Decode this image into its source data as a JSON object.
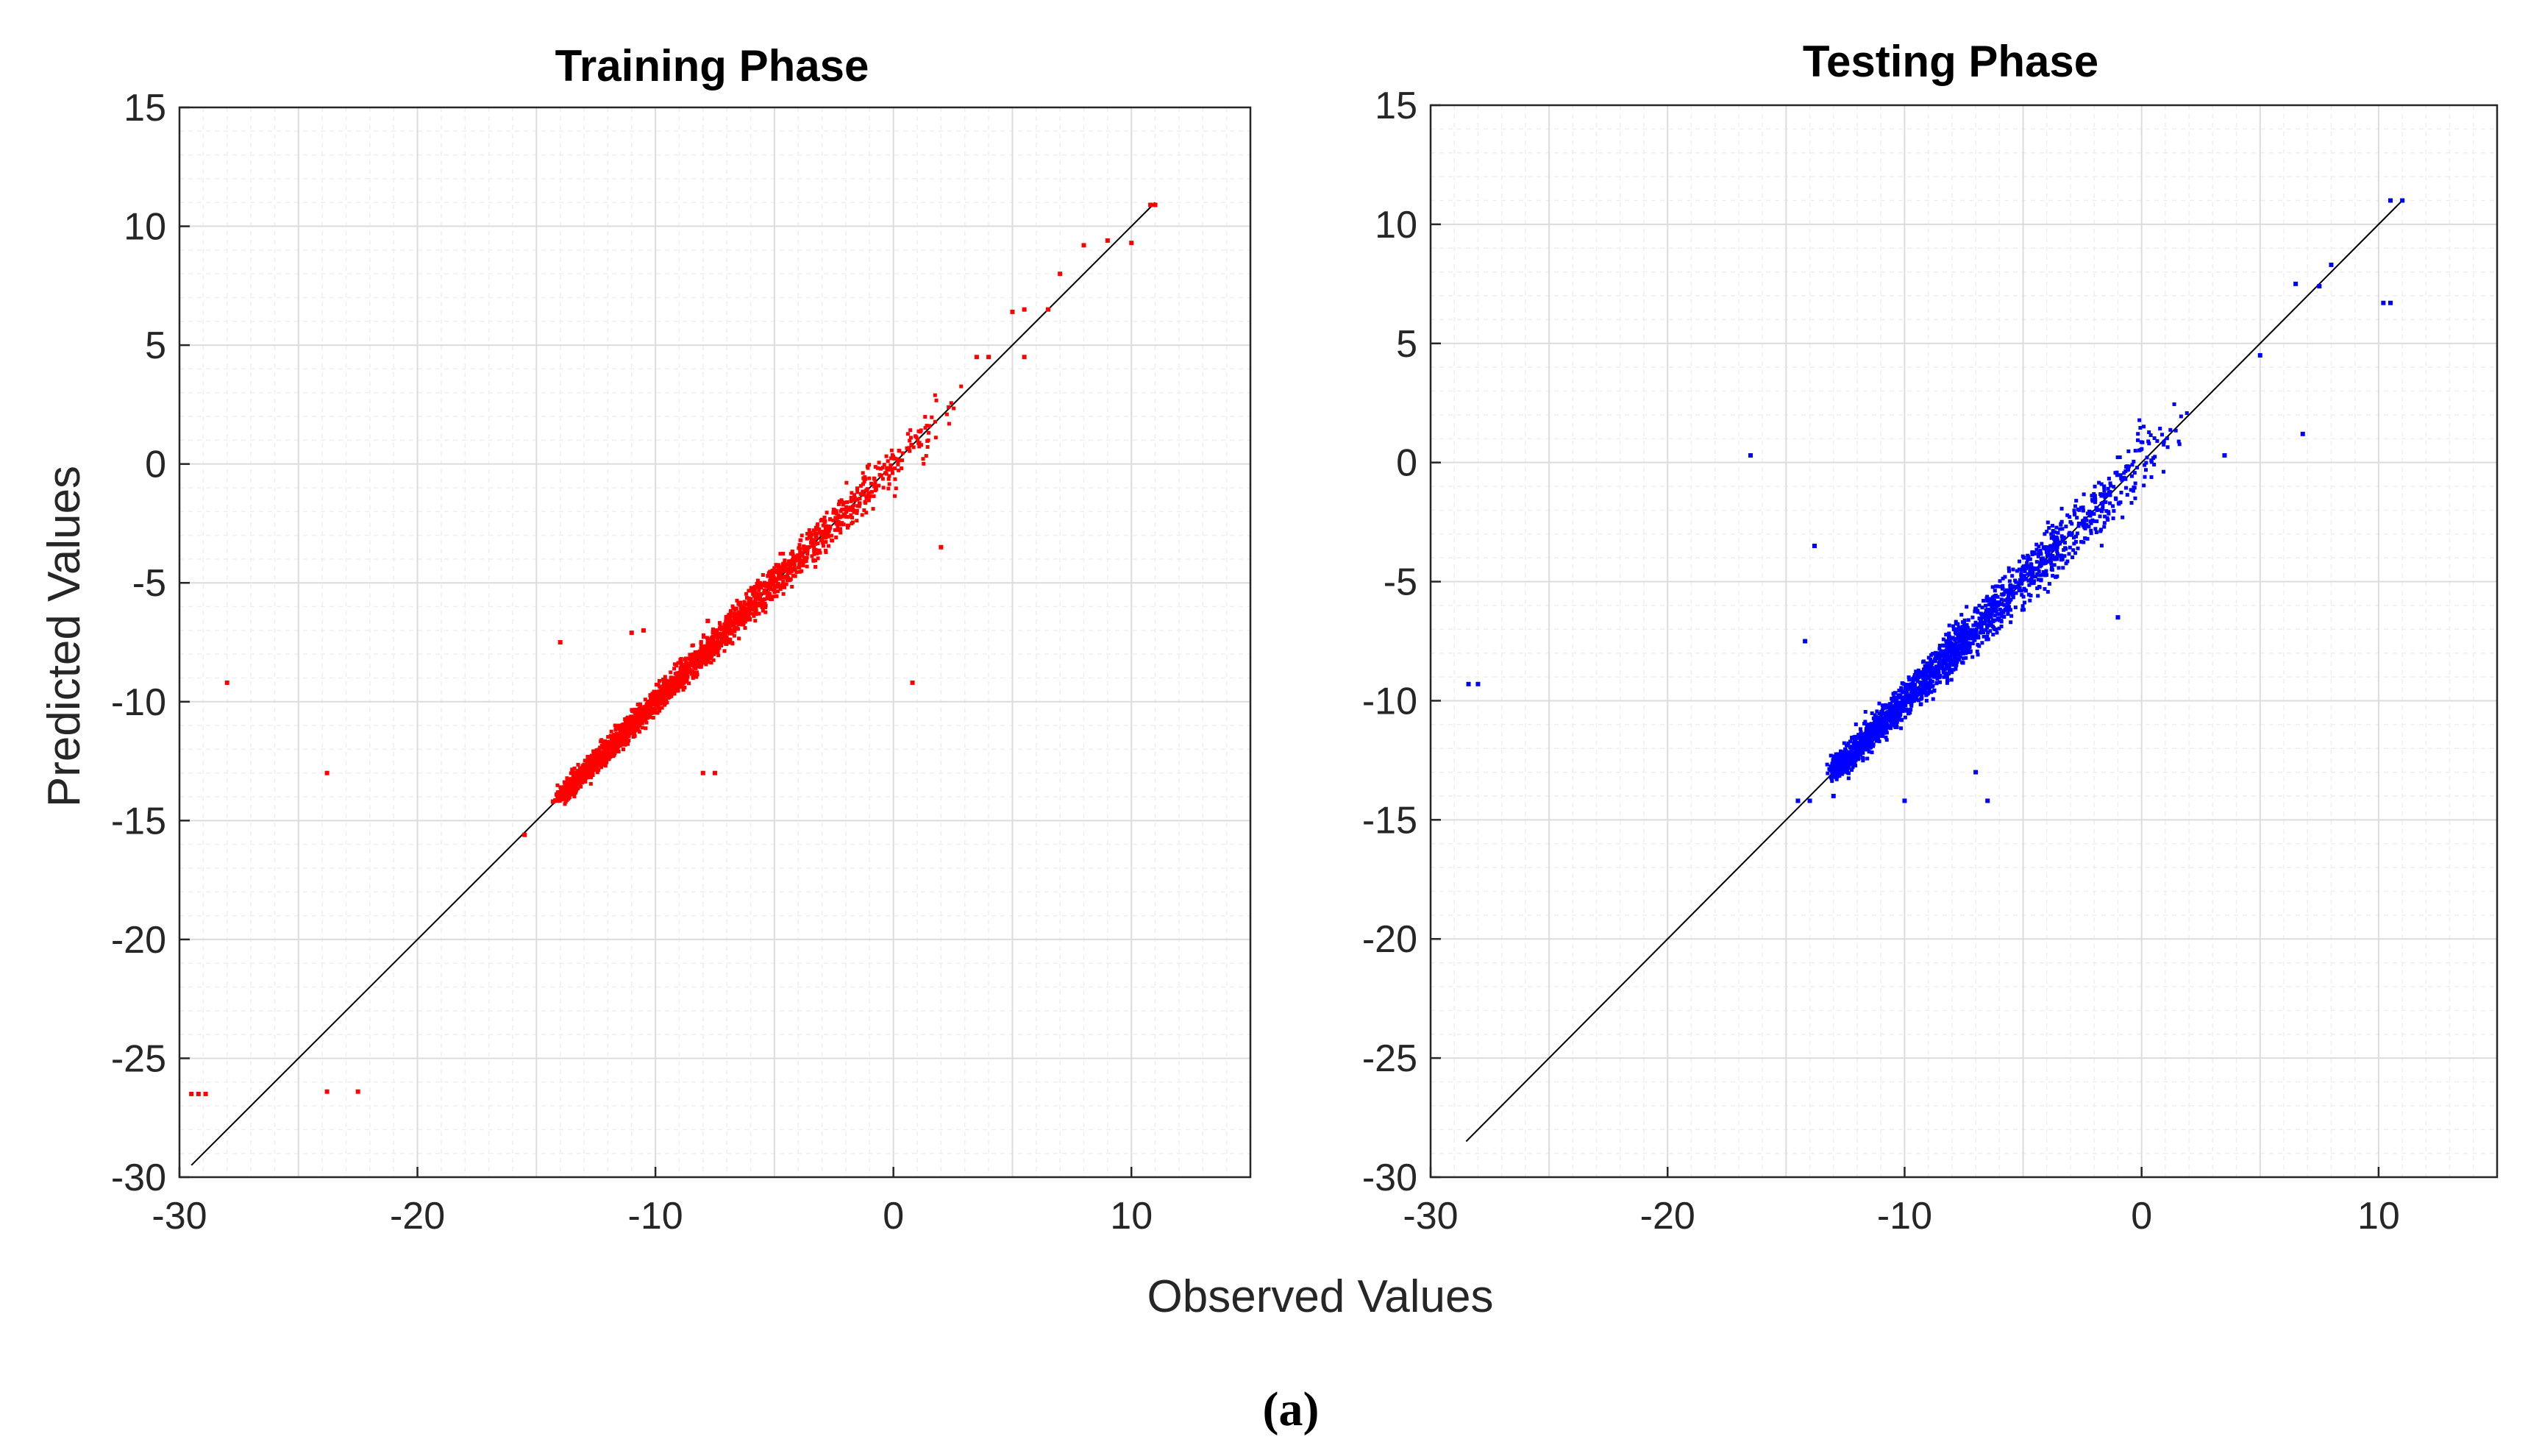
{
  "figure": {
    "caption": "(a)",
    "xlabel": "Observed Values",
    "ylabel": "Predicted Values"
  },
  "chart_data": [
    {
      "type": "scatter",
      "title": "Training Phase",
      "xlabel": "Observed Values",
      "ylabel": "Predicted Values",
      "xlim": [
        -30,
        15
      ],
      "ylim": [
        -30,
        15
      ],
      "xticks": [
        -30,
        -20,
        -10,
        0,
        10
      ],
      "yticks": [
        15,
        10,
        5,
        0,
        -5,
        -10,
        -15,
        -20,
        -25,
        -30
      ],
      "grid": true,
      "marker_color": "#ff0000",
      "reference_line": {
        "from": [
          -29.5,
          -29.5
        ],
        "to": [
          11,
          11
        ],
        "color": "#000000"
      },
      "cluster": {
        "x_range": [
          -14,
          3
        ],
        "slope": 1.0,
        "spread": 0.6,
        "count": 2400
      },
      "outliers": [
        {
          "x": -29.5,
          "y": -26.5
        },
        {
          "x": -29.2,
          "y": -26.5
        },
        {
          "x": -28.9,
          "y": -26.5
        },
        {
          "x": -28,
          "y": -9.2
        },
        {
          "x": -23.8,
          "y": -13
        },
        {
          "x": -23.8,
          "y": -26.4
        },
        {
          "x": -22.5,
          "y": -26.4
        },
        {
          "x": -15.5,
          "y": -15.6
        },
        {
          "x": -14.3,
          "y": -14.2
        },
        {
          "x": -14,
          "y": -14.1
        },
        {
          "x": -14,
          "y": -7.5
        },
        {
          "x": -11,
          "y": -7.1
        },
        {
          "x": -10.5,
          "y": -7
        },
        {
          "x": -8,
          "y": -13
        },
        {
          "x": -7.5,
          "y": -13
        },
        {
          "x": -7.8,
          "y": -6.6
        },
        {
          "x": 0.8,
          "y": -9.2
        },
        {
          "x": 2,
          "y": -3.5
        },
        {
          "x": 3.5,
          "y": 4.5
        },
        {
          "x": 4,
          "y": 4.5
        },
        {
          "x": 5.5,
          "y": 4.5
        },
        {
          "x": 5,
          "y": 6.4
        },
        {
          "x": 5.5,
          "y": 6.5
        },
        {
          "x": 6.5,
          "y": 6.5
        },
        {
          "x": 7,
          "y": 8
        },
        {
          "x": 8,
          "y": 9.2
        },
        {
          "x": 9,
          "y": 9.4
        },
        {
          "x": 10,
          "y": 9.3
        },
        {
          "x": 10.8,
          "y": 10.9
        },
        {
          "x": 11,
          "y": 10.9
        }
      ]
    },
    {
      "type": "scatter",
      "title": "Testing Phase",
      "xlabel": "Observed Values",
      "ylabel": "Predicted Values",
      "xlim": [
        -30,
        15
      ],
      "ylim": [
        -30,
        15
      ],
      "xticks": [
        -30,
        -20,
        -10,
        0,
        10
      ],
      "yticks": [
        15,
        10,
        5,
        0,
        -5,
        -10,
        -15,
        -20,
        -25,
        -30
      ],
      "grid": true,
      "marker_color": "#0000ff",
      "reference_line": {
        "from": [
          -28.5,
          -28.5
        ],
        "to": [
          11,
          11
        ],
        "color": "#000000"
      },
      "cluster": {
        "x_range": [
          -13,
          2.5
        ],
        "slope": 1.0,
        "spread": 0.85,
        "count": 1900
      },
      "outliers": [
        {
          "x": -28.4,
          "y": -9.3
        },
        {
          "x": -28,
          "y": -9.3
        },
        {
          "x": -16.5,
          "y": 0.3
        },
        {
          "x": -14.5,
          "y": -14.2
        },
        {
          "x": -14,
          "y": -14.2
        },
        {
          "x": -13,
          "y": -14
        },
        {
          "x": -14.2,
          "y": -7.5
        },
        {
          "x": -13.8,
          "y": -3.5
        },
        {
          "x": -10,
          "y": -14.2
        },
        {
          "x": -7,
          "y": -13
        },
        {
          "x": -6.5,
          "y": -14.2
        },
        {
          "x": -1,
          "y": -6.5
        },
        {
          "x": 3.5,
          "y": 0.3
        },
        {
          "x": 5,
          "y": 4.5
        },
        {
          "x": 6.5,
          "y": 7.5
        },
        {
          "x": 7.5,
          "y": 7.4
        },
        {
          "x": 8,
          "y": 8.3
        },
        {
          "x": 6.8,
          "y": 1.2
        },
        {
          "x": 10.2,
          "y": 6.7
        },
        {
          "x": 10.5,
          "y": 6.7
        },
        {
          "x": 10.5,
          "y": 11
        },
        {
          "x": 11,
          "y": 11
        }
      ]
    }
  ]
}
